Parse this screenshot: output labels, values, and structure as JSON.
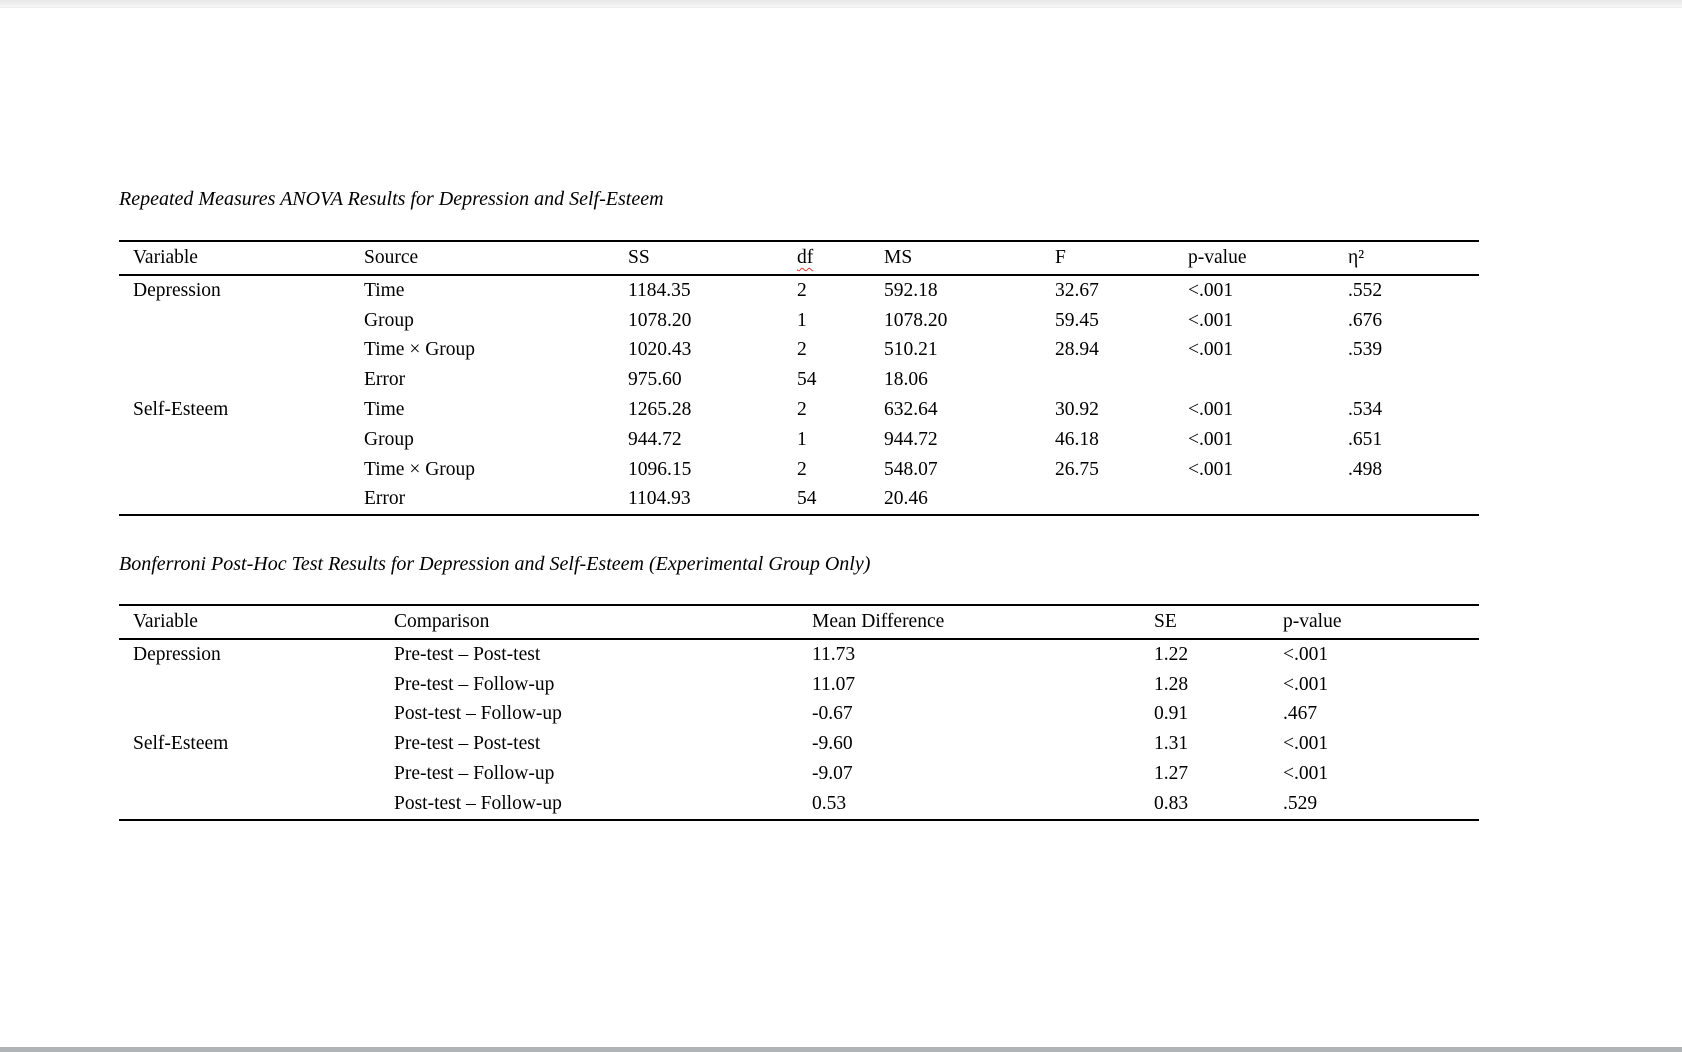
{
  "page": {
    "background": "#ffffff",
    "top_strip_color": "#ededed",
    "bottom_strip_color": "#b1b4b7",
    "text_color": "#000000",
    "spellcheck_underline_color": "#e03a2f",
    "spellcheck_flagged_header": "df"
  },
  "anova": {
    "title": "Repeated Measures ANOVA Results for Depression and Self-Esteem",
    "columns": [
      "Variable",
      "Source",
      "SS",
      "df",
      "MS",
      "F",
      "p-value",
      "η²"
    ],
    "rows": [
      {
        "variable": "Depression",
        "source": "Time",
        "ss": "1184.35",
        "df": "2",
        "ms": "592.18",
        "f": "32.67",
        "p": "<.001",
        "eta": ".552"
      },
      {
        "variable": "",
        "source": "Group",
        "ss": "1078.20",
        "df": "1",
        "ms": "1078.20",
        "f": "59.45",
        "p": "<.001",
        "eta": ".676"
      },
      {
        "variable": "",
        "source": "Time × Group",
        "ss": "1020.43",
        "df": "2",
        "ms": "510.21",
        "f": "28.94",
        "p": "<.001",
        "eta": ".539"
      },
      {
        "variable": "",
        "source": "Error",
        "ss": "975.60",
        "df": "54",
        "ms": "18.06",
        "f": "",
        "p": "",
        "eta": ""
      },
      {
        "variable": "Self-Esteem",
        "source": "Time",
        "ss": "1265.28",
        "df": "2",
        "ms": "632.64",
        "f": "30.92",
        "p": "<.001",
        "eta": ".534"
      },
      {
        "variable": "",
        "source": "Group",
        "ss": "944.72",
        "df": "1",
        "ms": "944.72",
        "f": "46.18",
        "p": "<.001",
        "eta": ".651"
      },
      {
        "variable": "",
        "source": "Time × Group",
        "ss": "1096.15",
        "df": "2",
        "ms": "548.07",
        "f": "26.75",
        "p": "<.001",
        "eta": ".498"
      },
      {
        "variable": "",
        "source": "Error",
        "ss": "1104.93",
        "df": "54",
        "ms": "20.46",
        "f": "",
        "p": "",
        "eta": ""
      }
    ]
  },
  "posthoc": {
    "title": "Bonferroni Post-Hoc Test Results for Depression and Self-Esteem (Experimental Group Only)",
    "columns": [
      "Variable",
      "Comparison",
      "Mean Difference",
      "SE",
      "p-value"
    ],
    "rows": [
      {
        "variable": "Depression",
        "comparison": "Pre-test – Post-test",
        "md": "11.73",
        "se": "1.22",
        "p": "<.001"
      },
      {
        "variable": "",
        "comparison": "Pre-test – Follow-up",
        "md": "11.07",
        "se": "1.28",
        "p": "<.001"
      },
      {
        "variable": "",
        "comparison": "Post-test – Follow-up",
        "md": "-0.67",
        "se": "0.91",
        "p": ".467"
      },
      {
        "variable": "Self-Esteem",
        "comparison": "Pre-test – Post-test",
        "md": "-9.60",
        "se": "1.31",
        "p": "<.001"
      },
      {
        "variable": "",
        "comparison": "Pre-test – Follow-up",
        "md": "-9.07",
        "se": "1.27",
        "p": "<.001"
      },
      {
        "variable": "",
        "comparison": "Post-test – Follow-up",
        "md": "0.53",
        "se": "0.83",
        "p": ".529"
      }
    ]
  }
}
